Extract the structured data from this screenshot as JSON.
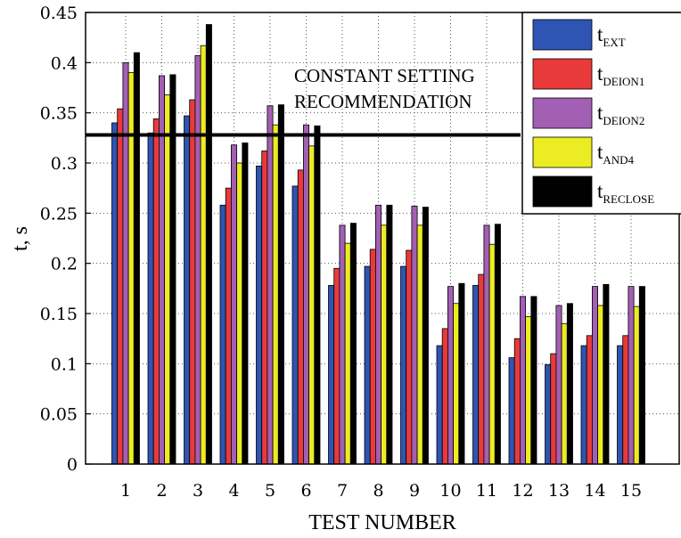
{
  "chart_data": {
    "type": "bar",
    "title": "",
    "xlabel": "TEST NUMBER",
    "ylabel": "t, s",
    "ylim": [
      0,
      0.45
    ],
    "yticks": [
      "0",
      "0.05",
      "0.1",
      "0.15",
      "0.2",
      "0.25",
      "0.3",
      "0.35",
      "0.4",
      "0.45"
    ],
    "grid": true,
    "legend_position": "top-right",
    "categories": [
      "1",
      "2",
      "3",
      "4",
      "5",
      "6",
      "7",
      "8",
      "9",
      "10",
      "11",
      "12",
      "13",
      "14",
      "15"
    ],
    "series": [
      {
        "name": "EXT",
        "color": "#2e55b4",
        "values": [
          0.34,
          0.33,
          0.347,
          0.258,
          0.297,
          0.277,
          0.178,
          0.197,
          0.197,
          0.118,
          0.178,
          0.106,
          0.099,
          0.118,
          0.118
        ]
      },
      {
        "name": "DEION1",
        "color": "#e83a3a",
        "values": [
          0.354,
          0.344,
          0.363,
          0.275,
          0.312,
          0.293,
          0.195,
          0.214,
          0.213,
          0.135,
          0.189,
          0.125,
          0.11,
          0.128,
          0.128
        ]
      },
      {
        "name": "DEION2",
        "color": "#a35fb4",
        "values": [
          0.4,
          0.387,
          0.407,
          0.318,
          0.357,
          0.338,
          0.238,
          0.258,
          0.257,
          0.177,
          0.238,
          0.167,
          0.158,
          0.177,
          0.177
        ]
      },
      {
        "name": "AND4",
        "color": "#ecec22",
        "values": [
          0.39,
          0.368,
          0.417,
          0.3,
          0.338,
          0.317,
          0.22,
          0.238,
          0.238,
          0.16,
          0.219,
          0.147,
          0.14,
          0.158,
          0.157
        ]
      },
      {
        "name": "RECLOSE",
        "color": "#000000",
        "values": [
          0.41,
          0.388,
          0.438,
          0.32,
          0.358,
          0.337,
          0.24,
          0.258,
          0.256,
          0.18,
          0.239,
          0.167,
          0.16,
          0.179,
          0.177
        ]
      }
    ],
    "legend_prefix": "t",
    "reference_line": {
      "value": 0.328,
      "label_line1": "CONSTANT SETTING",
      "label_line2": "RECOMMENDATION"
    }
  }
}
